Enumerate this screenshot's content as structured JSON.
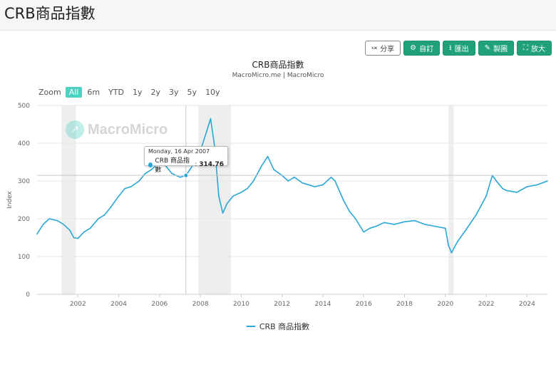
{
  "page": {
    "title": "CRB商品指數"
  },
  "toolbar": [
    {
      "id": "share",
      "label": "分享",
      "icon": "share-icon"
    },
    {
      "id": "custom",
      "label": "自訂",
      "icon": "gear-icon"
    },
    {
      "id": "export",
      "label": "匯出",
      "icon": "download-icon"
    },
    {
      "id": "draw",
      "label": "製圖",
      "icon": "pencil-icon"
    },
    {
      "id": "expand",
      "label": "放大",
      "icon": "expand-icon"
    }
  ],
  "range_selector": {
    "label": "Zoom",
    "options": [
      "All",
      "6m",
      "YTD",
      "1y",
      "2y",
      "3y",
      "5y",
      "10y"
    ],
    "selected": "All"
  },
  "watermark": "MacroMicro",
  "tooltip": {
    "date": "Monday, 16 Apr 2007",
    "series": "CRB 商品指數",
    "value": "314.76"
  },
  "colors": {
    "line": "#29a6d6",
    "accent": "#21a17a",
    "recession": "#eeeeee",
    "range_active": "#4ed1c0"
  },
  "chart_data": {
    "type": "line",
    "title": "CRB商品指數",
    "subtitle": "MacroMicro.me | MacroMicro",
    "ylabel": "Index",
    "ylim": [
      0,
      500
    ],
    "yticks": [
      0,
      100,
      200,
      300,
      400,
      500
    ],
    "xlim": [
      2000.0,
      2025.0
    ],
    "xticks": [
      2002,
      2004,
      2006,
      2008,
      2010,
      2012,
      2014,
      2016,
      2018,
      2020,
      2022,
      2024
    ],
    "recessions": [
      [
        2001.2,
        2001.9
      ],
      [
        2007.9,
        2009.5
      ],
      [
        2020.15,
        2020.4
      ]
    ],
    "crosshair": {
      "x": 2007.29,
      "y": 314.76
    },
    "series": [
      {
        "name": "CRB 商品指數",
        "x": [
          2000.0,
          2000.3,
          2000.6,
          2001.0,
          2001.3,
          2001.6,
          2001.8,
          2002.0,
          2002.3,
          2002.6,
          2003.0,
          2003.3,
          2003.6,
          2004.0,
          2004.3,
          2004.6,
          2005.0,
          2005.3,
          2005.6,
          2006.0,
          2006.3,
          2006.6,
          2007.0,
          2007.3,
          2007.6,
          2008.0,
          2008.3,
          2008.5,
          2008.7,
          2008.9,
          2009.1,
          2009.3,
          2009.6,
          2010.0,
          2010.3,
          2010.6,
          2011.0,
          2011.3,
          2011.6,
          2012.0,
          2012.3,
          2012.6,
          2013.0,
          2013.3,
          2013.6,
          2014.0,
          2014.4,
          2014.6,
          2015.0,
          2015.3,
          2015.6,
          2016.0,
          2016.3,
          2016.6,
          2017.0,
          2017.5,
          2018.0,
          2018.5,
          2019.0,
          2019.5,
          2020.0,
          2020.15,
          2020.3,
          2020.6,
          2021.0,
          2021.5,
          2022.0,
          2022.3,
          2022.5,
          2022.8,
          2023.0,
          2023.5,
          2024.0,
          2024.5,
          2025.0
        ],
        "values": [
          160,
          185,
          200,
          195,
          185,
          170,
          150,
          148,
          165,
          175,
          200,
          210,
          230,
          260,
          280,
          285,
          300,
          320,
          330,
          350,
          340,
          320,
          310,
          315,
          340,
          380,
          430,
          465,
          390,
          260,
          215,
          240,
          260,
          270,
          280,
          300,
          340,
          365,
          330,
          315,
          300,
          310,
          295,
          290,
          285,
          290,
          310,
          300,
          250,
          220,
          200,
          165,
          175,
          180,
          190,
          185,
          192,
          195,
          185,
          180,
          175,
          130,
          110,
          140,
          170,
          210,
          260,
          315,
          300,
          280,
          275,
          270,
          285,
          290,
          300
        ]
      }
    ]
  }
}
